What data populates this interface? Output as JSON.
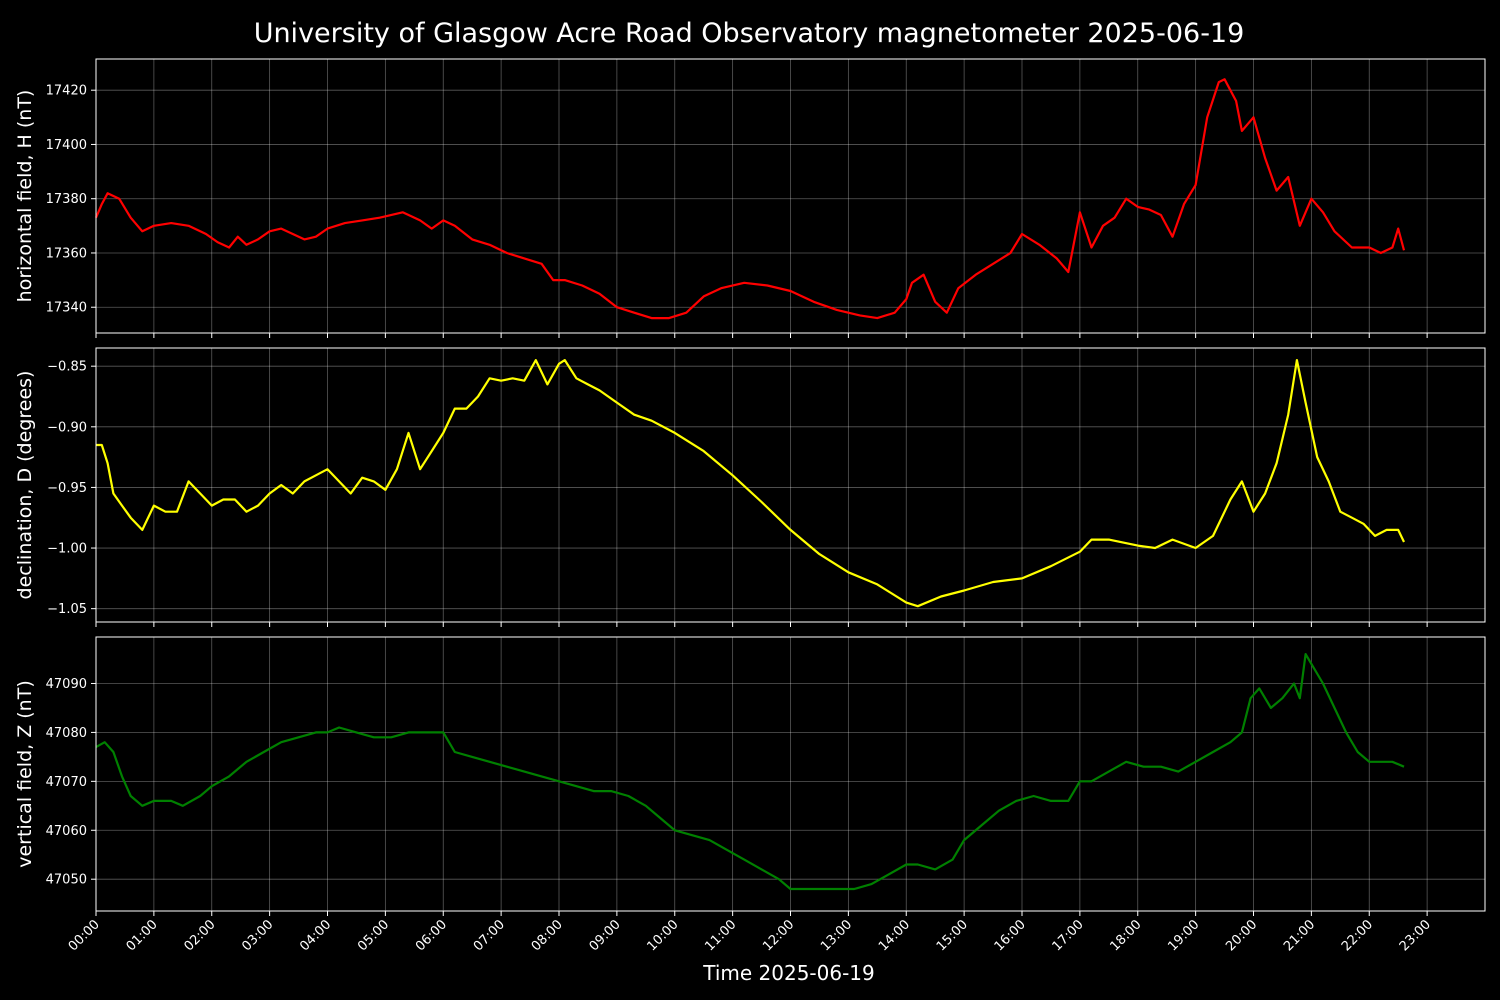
{
  "chart_data": {
    "title": "University of Glasgow Acre Road Observatory magnetometer 2025-06-19",
    "xlabel": "Time 2025-06-19",
    "x_ticks": [
      "00:00",
      "01:00",
      "02:00",
      "03:00",
      "04:00",
      "05:00",
      "06:00",
      "07:00",
      "08:00",
      "09:00",
      "10:00",
      "11:00",
      "12:00",
      "13:00",
      "14:00",
      "15:00",
      "16:00",
      "17:00",
      "18:00",
      "19:00",
      "20:00",
      "21:00",
      "22:00",
      "23:00"
    ],
    "xlim_hours": [
      0,
      24
    ],
    "grid": true,
    "panels": [
      {
        "type": "line",
        "ylabel": "horizontal field, H (nT)",
        "color": "#ff0000",
        "ylim": [
          17330.5,
          17431.5
        ],
        "y_ticks": [
          17340,
          17360,
          17380,
          17400,
          17420
        ],
        "y_tick_labels": [
          "17340",
          "17360",
          "17380",
          "17400",
          "17420"
        ],
        "series": {
          "x": [
            0.0,
            0.1,
            0.2,
            0.4,
            0.6,
            0.8,
            1.0,
            1.3,
            1.6,
            1.9,
            2.1,
            2.3,
            2.45,
            2.6,
            2.8,
            3.0,
            3.2,
            3.4,
            3.6,
            3.8,
            4.0,
            4.3,
            4.6,
            4.9,
            5.3,
            5.6,
            5.8,
            6.0,
            6.2,
            6.5,
            6.8,
            7.1,
            7.4,
            7.7,
            7.9,
            8.1,
            8.4,
            8.7,
            9.0,
            9.3,
            9.6,
            9.9,
            10.2,
            10.5,
            10.8,
            11.2,
            11.6,
            12.0,
            12.4,
            12.8,
            13.2,
            13.5,
            13.8,
            14.0,
            14.1,
            14.3,
            14.5,
            14.7,
            14.9,
            15.2,
            15.5,
            15.8,
            16.0,
            16.3,
            16.6,
            16.8,
            17.0,
            17.2,
            17.4,
            17.6,
            17.8,
            18.0,
            18.2,
            18.4,
            18.6,
            18.8,
            19.0,
            19.2,
            19.4,
            19.5,
            19.7,
            19.8,
            20.0,
            20.2,
            20.4,
            20.6,
            20.8,
            21.0,
            21.2,
            21.4,
            21.7,
            22.0,
            22.2,
            22.4,
            22.5,
            22.6
          ],
          "y": [
            17373,
            17378,
            17382,
            17380,
            17373,
            17368,
            17370,
            17371,
            17370,
            17367,
            17364,
            17362,
            17366,
            17363,
            17365,
            17368,
            17369,
            17367,
            17365,
            17366,
            17369,
            17371,
            17372,
            17373,
            17375,
            17372,
            17369,
            17372,
            17370,
            17365,
            17363,
            17360,
            17358,
            17356,
            17350,
            17350,
            17348,
            17345,
            17340,
            17338,
            17336,
            17336,
            17338,
            17344,
            17347,
            17349,
            17348,
            17346,
            17342,
            17339,
            17337,
            17336,
            17338,
            17343,
            17349,
            17352,
            17342,
            17338,
            17347,
            17352,
            17356,
            17360,
            17367,
            17363,
            17358,
            17353,
            17375,
            17362,
            17370,
            17373,
            17380,
            17377,
            17376,
            17374,
            17366,
            17378,
            17385,
            17410,
            17423,
            17424,
            17416,
            17405,
            17410,
            17395,
            17383,
            17388,
            17370,
            17380,
            17375,
            17368,
            17362,
            17362,
            17360,
            17362,
            17369,
            17361
          ]
        }
      },
      {
        "type": "line",
        "ylabel": "declination, D (degrees)",
        "color": "#ffff00",
        "ylim": [
          -1.061,
          -0.835
        ],
        "y_ticks": [
          -1.05,
          -1.0,
          -0.95,
          -0.9,
          -0.85
        ],
        "y_tick_labels": [
          "−1.05",
          "−1.00",
          "−0.95",
          "−0.90",
          "−0.85"
        ],
        "series": {
          "x": [
            0.0,
            0.1,
            0.2,
            0.3,
            0.45,
            0.6,
            0.8,
            1.0,
            1.2,
            1.4,
            1.6,
            1.8,
            2.0,
            2.2,
            2.4,
            2.6,
            2.8,
            3.0,
            3.2,
            3.4,
            3.6,
            3.8,
            4.0,
            4.2,
            4.4,
            4.6,
            4.8,
            5.0,
            5.2,
            5.4,
            5.6,
            5.8,
            6.0,
            6.2,
            6.4,
            6.6,
            6.8,
            7.0,
            7.2,
            7.4,
            7.6,
            7.8,
            8.0,
            8.1,
            8.3,
            8.5,
            8.7,
            9.0,
            9.3,
            9.6,
            10.0,
            10.5,
            11.0,
            11.5,
            12.0,
            12.5,
            13.0,
            13.5,
            14.0,
            14.2,
            14.6,
            15.0,
            15.5,
            16.0,
            16.5,
            17.0,
            17.2,
            17.5,
            18.0,
            18.3,
            18.6,
            19.0,
            19.3,
            19.6,
            19.8,
            20.0,
            20.2,
            20.4,
            20.6,
            20.75,
            20.9,
            21.1,
            21.3,
            21.5,
            21.7,
            21.9,
            22.1,
            22.3,
            22.5,
            22.6
          ],
          "y": [
            -0.915,
            -0.915,
            -0.93,
            -0.955,
            -0.965,
            -0.975,
            -0.985,
            -0.965,
            -0.97,
            -0.97,
            -0.945,
            -0.955,
            -0.965,
            -0.96,
            -0.96,
            -0.97,
            -0.965,
            -0.955,
            -0.948,
            -0.955,
            -0.945,
            -0.94,
            -0.935,
            -0.945,
            -0.955,
            -0.942,
            -0.945,
            -0.952,
            -0.935,
            -0.905,
            -0.935,
            -0.92,
            -0.905,
            -0.885,
            -0.885,
            -0.875,
            -0.86,
            -0.862,
            -0.86,
            -0.862,
            -0.845,
            -0.865,
            -0.848,
            -0.845,
            -0.86,
            -0.865,
            -0.87,
            -0.88,
            -0.89,
            -0.895,
            -0.905,
            -0.92,
            -0.94,
            -0.962,
            -0.985,
            -1.005,
            -1.02,
            -1.03,
            -1.045,
            -1.048,
            -1.04,
            -1.035,
            -1.028,
            -1.025,
            -1.015,
            -1.003,
            -0.993,
            -0.993,
            -0.998,
            -1.0,
            -0.993,
            -1.0,
            -0.99,
            -0.96,
            -0.945,
            -0.97,
            -0.955,
            -0.93,
            -0.89,
            -0.845,
            -0.88,
            -0.925,
            -0.945,
            -0.97,
            -0.975,
            -0.98,
            -0.99,
            -0.985,
            -0.985,
            -0.995
          ]
        }
      },
      {
        "type": "line",
        "ylabel": "vertical field, Z (nT)",
        "color": "#008000",
        "ylim": [
          47043.5,
          47099.5
        ],
        "y_ticks": [
          47050,
          47060,
          47070,
          47080,
          47090
        ],
        "y_tick_labels": [
          "47050",
          "47060",
          "47070",
          "47080",
          "47090"
        ],
        "series": {
          "x": [
            0.0,
            0.15,
            0.3,
            0.45,
            0.6,
            0.8,
            1.0,
            1.3,
            1.5,
            1.8,
            2.0,
            2.3,
            2.6,
            2.9,
            3.2,
            3.5,
            3.8,
            4.0,
            4.2,
            4.5,
            4.8,
            5.1,
            5.4,
            5.7,
            6.0,
            6.2,
            6.5,
            6.8,
            7.1,
            7.4,
            7.7,
            8.0,
            8.3,
            8.6,
            8.9,
            9.2,
            9.5,
            9.8,
            10.0,
            10.3,
            10.6,
            10.9,
            11.2,
            11.5,
            11.8,
            12.0,
            12.2,
            12.5,
            12.8,
            13.1,
            13.4,
            13.7,
            14.0,
            14.2,
            14.5,
            14.8,
            15.0,
            15.3,
            15.6,
            15.9,
            16.2,
            16.5,
            16.8,
            17.0,
            17.2,
            17.5,
            17.8,
            18.1,
            18.4,
            18.7,
            19.0,
            19.3,
            19.6,
            19.8,
            19.95,
            20.1,
            20.3,
            20.5,
            20.7,
            20.8,
            20.9,
            21.0,
            21.2,
            21.4,
            21.6,
            21.8,
            22.0,
            22.2,
            22.4,
            22.6
          ],
          "y": [
            47077,
            47078,
            47076,
            47071,
            47067,
            47065,
            47066,
            47066,
            47065,
            47067,
            47069,
            47071,
            47074,
            47076,
            47078,
            47079,
            47080,
            47080,
            47081,
            47080,
            47079,
            47079,
            47080,
            47080,
            47080,
            47076,
            47075,
            47074,
            47073,
            47072,
            47071,
            47070,
            47069,
            47068,
            47068,
            47067,
            47065,
            47062,
            47060,
            47059,
            47058,
            47056,
            47054,
            47052,
            47050,
            47048,
            47048,
            47048,
            47048,
            47048,
            47049,
            47051,
            47053,
            47053,
            47052,
            47054,
            47058,
            47061,
            47064,
            47066,
            47067,
            47066,
            47066,
            47070,
            47070,
            47072,
            47074,
            47073,
            47073,
            47072,
            47074,
            47076,
            47078,
            47080,
            47087,
            47089,
            47085,
            47087,
            47090,
            47087,
            47096,
            47094,
            47090,
            47085,
            47080,
            47076,
            47074,
            47074,
            47074,
            47073
          ]
        }
      }
    ]
  }
}
